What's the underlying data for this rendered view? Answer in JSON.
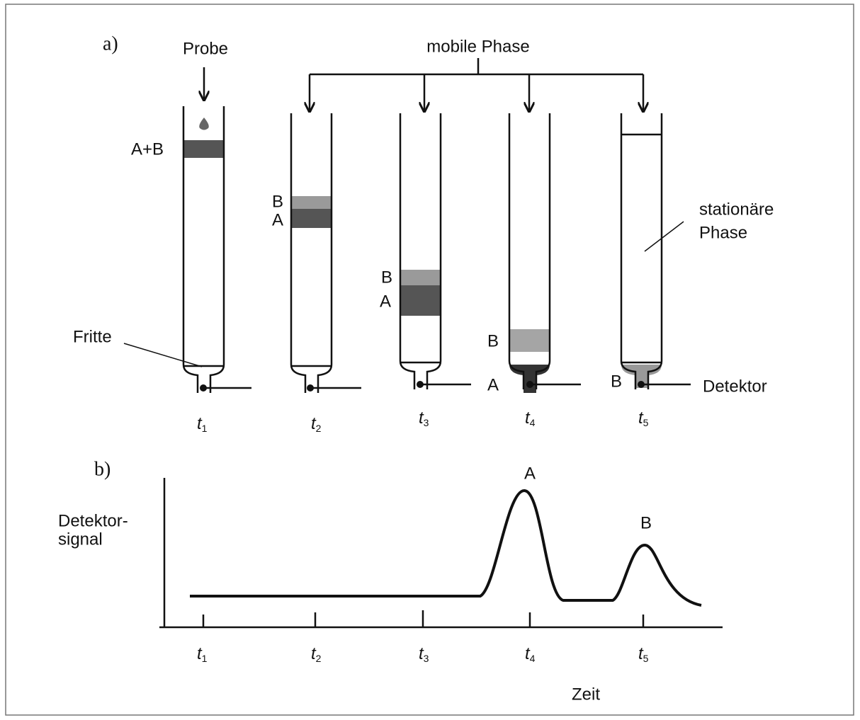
{
  "panel_a": {
    "label": "a)",
    "sample": "Probe",
    "mobile_phase": "mobile Phase",
    "stationary_phase": [
      "stationäre",
      "Phase"
    ],
    "frit": "Fritte",
    "detector": "Detektor",
    "columns": [
      {
        "time": {
          "symbol": "t",
          "index": "1"
        },
        "bands": [
          "A+B"
        ]
      },
      {
        "time": {
          "symbol": "t",
          "index": "2"
        },
        "bands": [
          "B",
          "A"
        ]
      },
      {
        "time": {
          "symbol": "t",
          "index": "3"
        },
        "bands": [
          "B",
          "A"
        ]
      },
      {
        "time": {
          "symbol": "t",
          "index": "4"
        },
        "bands": [
          "B",
          "A"
        ]
      },
      {
        "time": {
          "symbol": "t",
          "index": "5"
        },
        "bands": [
          "B"
        ]
      }
    ]
  },
  "panel_b": {
    "label": "b)",
    "y_label": [
      "Detektor-",
      "signal"
    ],
    "x_label": "Zeit",
    "peaks": [
      "A",
      "B"
    ],
    "ticks": [
      {
        "symbol": "t",
        "index": "1"
      },
      {
        "symbol": "t",
        "index": "2"
      },
      {
        "symbol": "t",
        "index": "3"
      },
      {
        "symbol": "t",
        "index": "4"
      },
      {
        "symbol": "t",
        "index": "5"
      }
    ]
  }
}
